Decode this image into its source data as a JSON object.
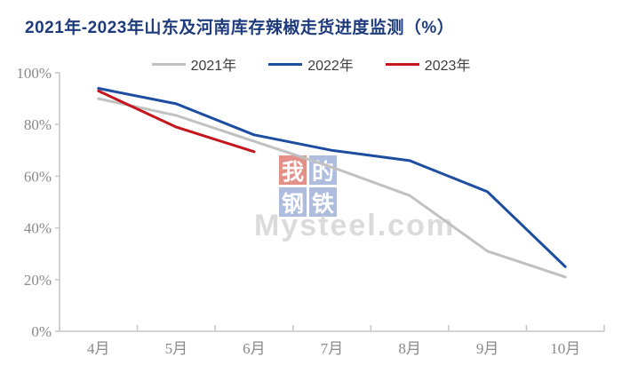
{
  "title": {
    "text": "2021年-2023年山东及河南库存辣椒走货进度监测（%）",
    "color": "#1e3c7d"
  },
  "legend": {
    "items": [
      {
        "label": "2021年"
      },
      {
        "label": "2022年"
      },
      {
        "label": "2023年"
      }
    ],
    "text_color": "#3d3d3d"
  },
  "watermark": {
    "blocks": [
      {
        "char": "我",
        "bg": "#d34d42"
      },
      {
        "char": "的",
        "bg": "#7d94c9"
      },
      {
        "char": "钢",
        "bg": "#7d94c9"
      },
      {
        "char": "铁",
        "bg": "#7d94c9"
      }
    ],
    "text": "Mysteel.com",
    "text_color": "#cfcfcf"
  },
  "chart_data": {
    "type": "line",
    "title": "2021年-2023年山东及河南库存辣椒走货进度监测（%）",
    "categories": [
      "4月",
      "5月",
      "6月",
      "7月",
      "8月",
      "9月",
      "10月"
    ],
    "series": [
      {
        "name": "2021年",
        "color": "#c1c1c1",
        "values": [
          90,
          83.5,
          73.5,
          63.5,
          52.5,
          31,
          21
        ]
      },
      {
        "name": "2022年",
        "color": "#1c4da0",
        "values": [
          94,
          88,
          76,
          70,
          66,
          54,
          25
        ]
      },
      {
        "name": "2023年",
        "color": "#c5161d",
        "values": [
          93,
          79,
          69.5,
          null,
          null,
          null,
          null
        ]
      }
    ],
    "xlabel": "",
    "ylabel": "",
    "ylim": [
      0,
      100
    ],
    "y_ticks": [
      0,
      20,
      40,
      60,
      80,
      100
    ],
    "y_tick_labels": [
      "0%",
      "20%",
      "40%",
      "60%",
      "80%",
      "100%"
    ],
    "grid": false,
    "legend_position": "top-center",
    "axis_color": "#c6c6c6",
    "tick_label_color": "#8a8a8a"
  }
}
